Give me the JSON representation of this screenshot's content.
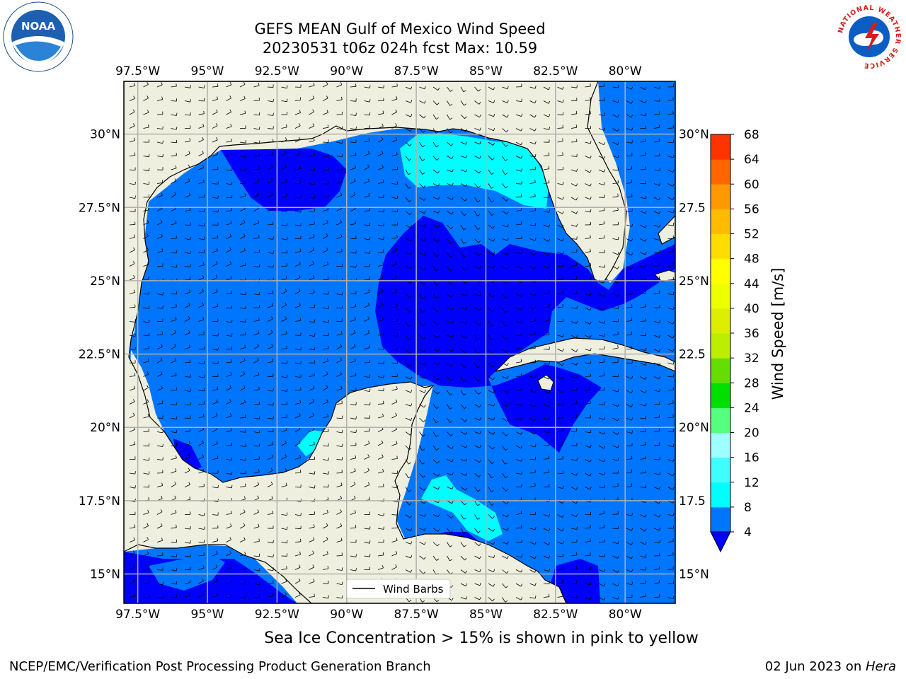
{
  "header": {
    "title": "GEFS MEAN Gulf of Mexico Wind Speed",
    "subtitle": "20230531 t06z 024h fcst   Max: 10.59"
  },
  "logos": {
    "left_text": "NOAA",
    "right_ring_text": "NATIONAL WEATHER SERVICE"
  },
  "map": {
    "lon_labels": [
      "97.5°W",
      "95°W",
      "92.5°W",
      "90°W",
      "87.5°W",
      "85°W",
      "82.5°W",
      "80°W"
    ],
    "lat_labels": [
      "30°N",
      "27.5°N",
      "25°N",
      "22.5°N",
      "20°N",
      "17.5°N",
      "15°N"
    ],
    "lat_labels_right": [
      "30°N",
      "27.5",
      "25°N",
      "22.5",
      "20°N",
      "17.5",
      "15°N"
    ],
    "lon_values": [
      -97.5,
      -95,
      -92.5,
      -90,
      -87.5,
      -85,
      -82.5,
      -80
    ],
    "lat_values": [
      30,
      27.5,
      25,
      22.5,
      20,
      17.5,
      15
    ],
    "extent": {
      "lon_min": -98,
      "lon_max": -78.2,
      "lat_min": 14,
      "lat_max": 31.8
    },
    "legend_label": "Wind Barbs",
    "max_wind": 10.59
  },
  "colorbar": {
    "label": "Wind Speed [m/s]",
    "tick_labels": [
      "68",
      "64",
      "60",
      "56",
      "52",
      "48",
      "44",
      "40",
      "36",
      "32",
      "28",
      "24",
      "20",
      "16",
      "12",
      "8",
      "4"
    ],
    "levels": [
      4,
      8,
      12,
      16,
      20,
      24,
      28,
      32,
      36,
      40,
      44,
      48,
      52,
      56,
      60,
      64,
      68
    ],
    "colors": [
      "#0076ff",
      "#00fefe",
      "#3ffeff",
      "#9ffeff",
      "#55ff80",
      "#00e000",
      "#66dd00",
      "#bbee00",
      "#ddee00",
      "#eeff00",
      "#ffff00",
      "#ffdd00",
      "#ffbb00",
      "#ff9900",
      "#ff6600",
      "#ff3300"
    ],
    "under_color": "#0000ff"
  },
  "colors": {
    "land": "#efefdf",
    "ocean_low": "#0000ff",
    "ocean_mid": "#0076ff",
    "ocean_high": "#00fefe",
    "grid": "#b0b0b0"
  },
  "footer": {
    "sea_ice_note": "Sea Ice Concentration > 15% is shown in pink to yellow",
    "left": "NCEP/EMC/Verification Post Processing Product Generation Branch",
    "right_date": "02 Jun 2023 on ",
    "right_machine": "Hera"
  }
}
